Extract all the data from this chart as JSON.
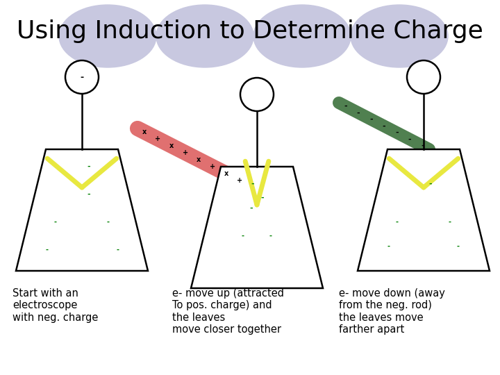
{
  "title": "Using Induction to Determine Charge",
  "title_fontsize": 26,
  "bg_color": "#ffffff",
  "bg_ovals_color": "#c8c8e0",
  "caption1": "Start with an\nelectroscope\nwith neg. charge",
  "caption2": "e- move up (attracted\nTo pos. charge) and\nthe leaves\nmove closer together",
  "caption3": "e- move down (away\nfrom the neg. rod)\nthe leaves move\nfarther apart",
  "caption_fontsize": 10.5
}
